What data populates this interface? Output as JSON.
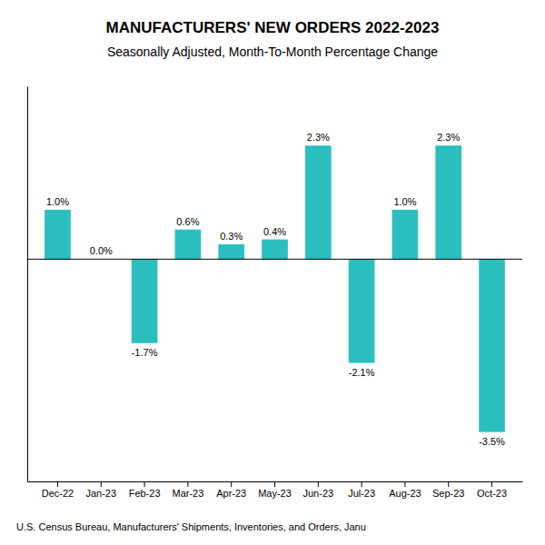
{
  "chart_data": {
    "type": "bar",
    "title": "MANUFACTURERS' NEW ORDERS 2022-2023",
    "subtitle": "Seasonally Adjusted,  Month-To-Month Percentage Change",
    "footer": "U.S. Census Bureau, Manufacturers' Shipments, Inventories, and Orders, Janu",
    "categories": [
      "Dec-22",
      "Jan-23",
      "Feb-23",
      "Mar-23",
      "Apr-23",
      "May-23",
      "Jun-23",
      "Jul-23",
      "Aug-23",
      "Sep-23",
      "Oct-23"
    ],
    "values": [
      1.0,
      0.0,
      -1.7,
      0.6,
      0.3,
      0.4,
      2.3,
      -2.1,
      1.0,
      2.3,
      -3.5
    ],
    "value_labels": [
      "1.0%",
      "0.0%",
      "-1.7%",
      "0.6%",
      "0.3%",
      "0.4%",
      "2.3%",
      "-2.1%",
      "1.0%",
      "2.3%",
      "-3.5%"
    ],
    "color": "#2BBFBF",
    "ylim": [
      -4.5,
      3.5
    ],
    "data_labels": true,
    "tick_labels": "x",
    "grid": false
  }
}
